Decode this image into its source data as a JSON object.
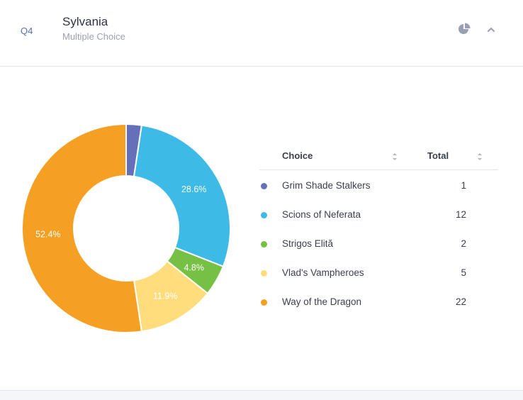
{
  "question": {
    "number": "Q4",
    "title": "Sylvania",
    "type": "Multiple Choice"
  },
  "header_actions": {
    "chart_icon": "pie-chart-icon",
    "collapse_icon": "chevron-up-icon"
  },
  "table": {
    "col_choice": "Choice",
    "col_total": "Total",
    "rows": [
      {
        "label": "Grim Shade Stalkers",
        "total": "1",
        "color": "#6670b8"
      },
      {
        "label": "Scions of Neferata",
        "total": "12",
        "color": "#3dbbe6"
      },
      {
        "label": "Strigos Elită",
        "total": "2",
        "color": "#76c043"
      },
      {
        "label": "Vlad's Vampheroes",
        "total": "5",
        "color": "#ffdd7c"
      },
      {
        "label": "Way of the Dragon",
        "total": "22",
        "color": "#f59f23"
      }
    ]
  },
  "chart_data": {
    "type": "pie",
    "categories": [
      "Grim Shade Stalkers",
      "Scions of Neferata",
      "Strigos Elită",
      "Vlad's Vampheroes",
      "Way of the Dragon"
    ],
    "values": [
      1,
      12,
      2,
      5,
      22
    ],
    "labels": [
      "",
      "28.6%",
      "4.8%",
      "11.9%",
      "52.4%"
    ],
    "colors": [
      "#6670b8",
      "#3dbbe6",
      "#76c043",
      "#ffdd7c",
      "#f59f23"
    ],
    "donut": true
  }
}
